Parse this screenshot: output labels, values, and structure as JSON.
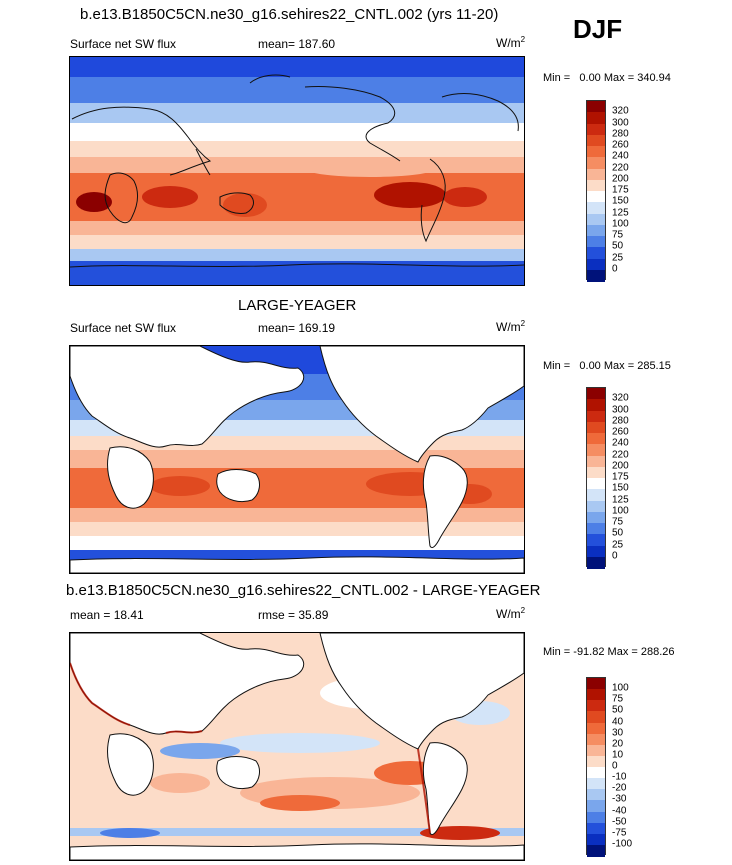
{
  "season": "DJF",
  "panels": [
    {
      "title": "b.e13.B1850C5CN.ne30_g16.sehires22_CNTL.002 (yrs 11-20)",
      "left_label": "Surface net SW flux",
      "center_label": "mean= 187.60",
      "units_base": "W/m",
      "units_exp": "2",
      "min_label": "Min =",
      "min_value": "0.00",
      "max_label": "Max =",
      "max_value": "340.94",
      "map_type": "absolute",
      "land_masked": false
    },
    {
      "title": "LARGE-YEAGER",
      "left_label": "Surface net SW flux",
      "center_label": "mean= 169.19",
      "units_base": "W/m",
      "units_exp": "2",
      "min_label": "Min =",
      "min_value": "0.00",
      "max_label": "Max =",
      "max_value": "285.15",
      "map_type": "absolute",
      "land_masked": true
    },
    {
      "title": "b.e13.B1850C5CN.ne30_g16.sehires22_CNTL.002 - LARGE-YEAGER",
      "left_label": "mean =  18.41",
      "center_label": "rmse =  35.89",
      "units_base": "W/m",
      "units_exp": "2",
      "min_label": "Min =",
      "min_value": "-91.82",
      "max_label": "Max =",
      "max_value": "288.26",
      "map_type": "difference",
      "land_masked": true
    }
  ],
  "colorbars": {
    "absolute": {
      "labels": [
        "320",
        "300",
        "280",
        "260",
        "240",
        "220",
        "200",
        "175",
        "150",
        "125",
        "100",
        "75",
        "50",
        "25",
        "0"
      ],
      "colors": [
        "#8b0000",
        "#b01200",
        "#cc2a10",
        "#e04a20",
        "#ef6a3a",
        "#f58d62",
        "#f9b596",
        "#fcdcc8",
        "#ffffff",
        "#d3e4f8",
        "#a9c8f2",
        "#7aa6ec",
        "#4d7fe6",
        "#2350db",
        "#0a2fc0",
        "#00127a"
      ]
    },
    "difference": {
      "labels": [
        "100",
        "75",
        "50",
        "40",
        "30",
        "20",
        "10",
        "0",
        "-10",
        "-20",
        "-30",
        "-40",
        "-50",
        "-75",
        "-100"
      ],
      "colors": [
        "#8b0000",
        "#b01200",
        "#cc2a10",
        "#e04a20",
        "#ef6a3a",
        "#f58d62",
        "#f9b596",
        "#fcdcc8",
        "#ffffff",
        "#d3e4f8",
        "#a9c8f2",
        "#7aa6ec",
        "#4d7fe6",
        "#2350db",
        "#0a2fc0",
        "#00127a"
      ]
    }
  }
}
